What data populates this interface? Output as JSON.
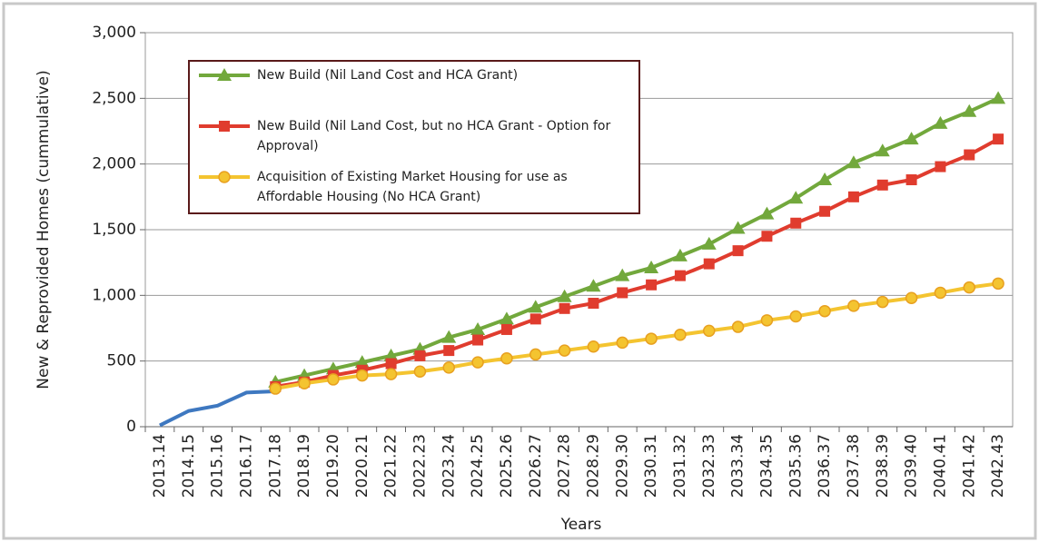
{
  "chart_data": {
    "type": "line",
    "x_label": "Years",
    "y_label": "New & Reprovided Homes (cummulative)",
    "categories": [
      "2013.14",
      "2014.15",
      "2015.16",
      "2016.17",
      "2017.18",
      "2018.19",
      "2019.20",
      "2020.21",
      "2021.22",
      "2022.23",
      "2023.24",
      "2024.25",
      "2025.26",
      "2026.27",
      "2027.28",
      "2028.29",
      "2029.30",
      "2030.31",
      "2031.32",
      "2032.33",
      "2033.34",
      "2034.35",
      "2035.36",
      "2036.37",
      "2037.38",
      "2038.39",
      "2039.40",
      "2040.41",
      "2041.42",
      "2042.43"
    ],
    "series": [
      {
        "color": "#3e78c0",
        "values": [
          10,
          120,
          160,
          260,
          270,
          null,
          null,
          null,
          null,
          null,
          null,
          null,
          null,
          null,
          null,
          null,
          null,
          null,
          null,
          null,
          null,
          null,
          null,
          null,
          null,
          null,
          null,
          null,
          null,
          null
        ]
      },
      {
        "name": "New Build (Nil Land Cost and HCA Grant)",
        "color": "#72a83c",
        "marker": "triangle",
        "values": [
          null,
          null,
          null,
          null,
          340,
          390,
          440,
          490,
          540,
          590,
          680,
          740,
          820,
          910,
          990,
          1070,
          1150,
          1210,
          1300,
          1390,
          1510,
          1620,
          1740,
          1880,
          2010,
          2100,
          2190,
          2310,
          2400,
          2500
        ]
      },
      {
        "name": "New Build (Nil Land Cost, but no HCA Grant - Option for Approval)",
        "color": "#e03c2e",
        "marker": "square",
        "values": [
          null,
          null,
          null,
          null,
          305,
          340,
          390,
          430,
          480,
          540,
          580,
          660,
          740,
          820,
          900,
          940,
          1020,
          1080,
          1150,
          1240,
          1340,
          1450,
          1550,
          1640,
          1750,
          1840,
          1880,
          1980,
          2070,
          2190
        ]
      },
      {
        "name": "Acquisition of Existing Market Housing for use as Affordable Housing (No HCA Grant)",
        "color": "#f4c430",
        "marker": "circle",
        "values": [
          null,
          null,
          null,
          null,
          290,
          330,
          360,
          390,
          400,
          420,
          450,
          490,
          520,
          550,
          580,
          610,
          640,
          670,
          700,
          730,
          760,
          810,
          840,
          880,
          920,
          950,
          980,
          1020,
          1060,
          1090
        ]
      }
    ],
    "ylim": [
      0,
      3000
    ],
    "yticks": [
      0,
      500,
      {
        "value": 1000,
        "label": "1,000"
      },
      {
        "value": 1500,
        "label": "1,500"
      },
      {
        "value": 2000,
        "label": "2,000"
      },
      {
        "value": 2500,
        "label": "2,500"
      },
      {
        "value": 3000,
        "label": "3,000"
      }
    ],
    "grid": true
  }
}
